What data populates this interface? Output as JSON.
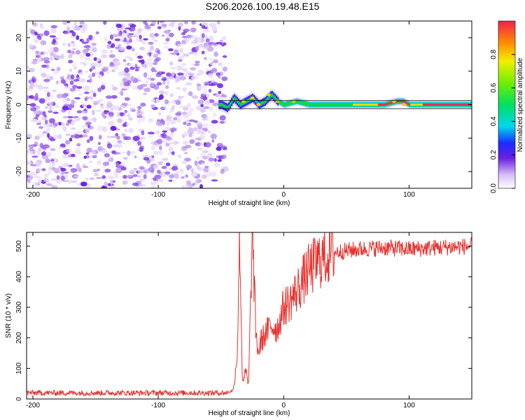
{
  "title": "S206.2026.100.19.48.E15",
  "chart_data": [
    {
      "type": "heatmap",
      "xlabel": "Height of straight line (km)",
      "ylabel": "Frequency (Hz)",
      "xlim": [
        -205,
        150
      ],
      "ylim": [
        -25,
        25
      ],
      "xticks": [
        -200,
        -100,
        0,
        100
      ],
      "yticks": [
        -20,
        -10,
        0,
        10,
        20
      ],
      "noise_region_x": [
        -205,
        -50
      ],
      "ridge": {
        "x": [
          -50,
          -45,
          -40,
          -35,
          -30,
          -25,
          -20,
          -15,
          -10,
          -5,
          0,
          10,
          20,
          40,
          60,
          80,
          90,
          95,
          100,
          120,
          150
        ],
        "frequency": [
          0,
          -1,
          2,
          0,
          1,
          2,
          0,
          1,
          3,
          1,
          0,
          1,
          0,
          0,
          0,
          0,
          1,
          1,
          0,
          0,
          0
        ]
      },
      "colorbar": {
        "label": "Normalized spectral amplitude",
        "range": [
          0,
          1
        ],
        "ticks": [
          "0.0",
          "0.2",
          "0.4",
          "0.6",
          "0.8"
        ]
      }
    },
    {
      "type": "line",
      "xlabel": "Height of straight line (km)",
      "ylabel": "SNR (10 * v/v)",
      "xlim": [
        -205,
        150
      ],
      "ylim": [
        0,
        545
      ],
      "xticks": [
        -200,
        -100,
        0,
        100
      ],
      "yticks": [
        0,
        100,
        200,
        300,
        400,
        500
      ],
      "color": "#e8322e",
      "series": [
        {
          "name": "SNR",
          "x": [
            -205,
            -45,
            -40,
            -37,
            -35,
            -33,
            -30,
            -28,
            -25,
            -22,
            -20,
            -18,
            -15,
            -10,
            -5,
            0,
            5,
            10,
            20,
            30,
            40,
            60,
            80,
            100,
            120,
            150
          ],
          "values": [
            20,
            20,
            30,
            150,
            545,
            60,
            90,
            40,
            545,
            200,
            150,
            190,
            210,
            240,
            230,
            300,
            320,
            350,
            420,
            460,
            480,
            490,
            495,
            490,
            495,
            500
          ]
        }
      ]
    }
  ]
}
